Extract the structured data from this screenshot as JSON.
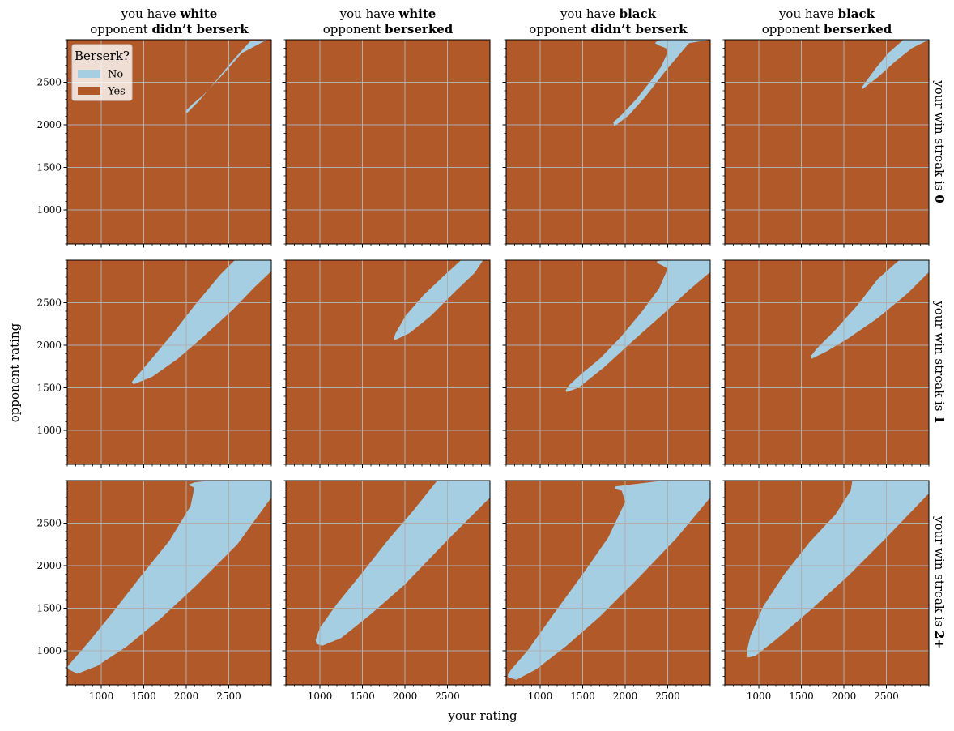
{
  "figure": {
    "x_label": "your rating",
    "y_label": "opponent rating"
  },
  "chart_data": {
    "type": "heatmap",
    "xlim": [
      600,
      3000
    ],
    "ylim": [
      600,
      3000
    ],
    "x_ticks": [
      1000,
      1500,
      2000,
      2500
    ],
    "y_ticks": [
      1000,
      1500,
      2000,
      2500
    ],
    "minor_tick_step": 100,
    "grid": true,
    "colors": {
      "no": "#a6cee3",
      "yes": "#b15928",
      "grid": "#b0b0b0"
    },
    "legend": {
      "title": "Berserk?",
      "entries": [
        {
          "label": "No",
          "color": "#a6cee3"
        },
        {
          "label": "Yes",
          "color": "#b15928"
        }
      ],
      "location": "upper-left of first panel"
    },
    "columns": [
      {
        "prefix": "you have ",
        "color": "white",
        "line2_prefix": "opponent ",
        "opponent": "didn’t berserk"
      },
      {
        "prefix": "you have ",
        "color": "white",
        "line2_prefix": "opponent ",
        "opponent": "berserked"
      },
      {
        "prefix": "you have ",
        "color": "black",
        "line2_prefix": "opponent ",
        "opponent": "didn’t berserk"
      },
      {
        "prefix": "you have ",
        "color": "black",
        "line2_prefix": "opponent ",
        "opponent": "berserked"
      }
    ],
    "rows": [
      {
        "prefix": "your win streak is ",
        "value": "0"
      },
      {
        "prefix": "your win streak is ",
        "value": "1"
      },
      {
        "prefix": "your win streak is ",
        "value": "2+"
      }
    ],
    "regions": [
      [
        [
          [
            2000,
            2130
          ],
          [
            2150,
            2280
          ],
          [
            2350,
            2520
          ],
          [
            2550,
            2760
          ],
          [
            2750,
            2980
          ],
          [
            3000,
            3000
          ],
          [
            2950,
            3000
          ],
          [
            2650,
            2840
          ],
          [
            2420,
            2580
          ],
          [
            2200,
            2350
          ],
          [
            2060,
            2230
          ],
          [
            1990,
            2160
          ]
        ],
        [],
        [
          [
            1870,
            1980
          ],
          [
            2040,
            2110
          ],
          [
            2230,
            2320
          ],
          [
            2480,
            2640
          ],
          [
            2750,
            2960
          ],
          [
            3000,
            3000
          ],
          [
            2500,
            3000
          ],
          [
            2380,
            2990
          ],
          [
            2350,
            2960
          ],
          [
            2400,
            2930
          ],
          [
            2480,
            2900
          ],
          [
            2500,
            2850
          ],
          [
            2420,
            2680
          ],
          [
            2280,
            2490
          ],
          [
            2130,
            2300
          ],
          [
            1960,
            2120
          ],
          [
            1860,
            2030
          ]
        ],
        [
          [
            2220,
            2420
          ],
          [
            2400,
            2560
          ],
          [
            2600,
            2740
          ],
          [
            2800,
            2900
          ],
          [
            3000,
            3000
          ],
          [
            2700,
            3000
          ],
          [
            2520,
            2840
          ],
          [
            2380,
            2670
          ],
          [
            2260,
            2510
          ],
          [
            2210,
            2440
          ]
        ]
      ],
      [
        [
          [
            1380,
            1540
          ],
          [
            1600,
            1630
          ],
          [
            1900,
            1840
          ],
          [
            2200,
            2100
          ],
          [
            2550,
            2420
          ],
          [
            2800,
            2680
          ],
          [
            3000,
            2870
          ],
          [
            3000,
            3000
          ],
          [
            2570,
            3000
          ],
          [
            2400,
            2830
          ],
          [
            2100,
            2470
          ],
          [
            1850,
            2150
          ],
          [
            1600,
            1850
          ],
          [
            1430,
            1650
          ],
          [
            1360,
            1570
          ]
        ],
        [
          [
            1880,
            2060
          ],
          [
            2050,
            2140
          ],
          [
            2300,
            2340
          ],
          [
            2600,
            2640
          ],
          [
            2820,
            2850
          ],
          [
            2920,
            3000
          ],
          [
            2660,
            3000
          ],
          [
            2450,
            2810
          ],
          [
            2220,
            2590
          ],
          [
            2010,
            2350
          ],
          [
            1890,
            2140
          ],
          [
            1870,
            2080
          ]
        ],
        [
          [
            1310,
            1450
          ],
          [
            1450,
            1500
          ],
          [
            1750,
            1740
          ],
          [
            2100,
            2060
          ],
          [
            2450,
            2370
          ],
          [
            2750,
            2650
          ],
          [
            3000,
            2860
          ],
          [
            3000,
            3000
          ],
          [
            2500,
            3000
          ],
          [
            2380,
            2990
          ],
          [
            2370,
            2970
          ],
          [
            2450,
            2930
          ],
          [
            2500,
            2900
          ],
          [
            2400,
            2670
          ],
          [
            2200,
            2400
          ],
          [
            1950,
            2100
          ],
          [
            1700,
            1840
          ],
          [
            1480,
            1660
          ],
          [
            1340,
            1530
          ],
          [
            1300,
            1470
          ]
        ],
        [
          [
            1620,
            1840
          ],
          [
            1800,
            1930
          ],
          [
            2050,
            2080
          ],
          [
            2400,
            2320
          ],
          [
            2750,
            2610
          ],
          [
            3000,
            2860
          ],
          [
            3000,
            3000
          ],
          [
            2650,
            3000
          ],
          [
            2400,
            2780
          ],
          [
            2150,
            2460
          ],
          [
            1900,
            2180
          ],
          [
            1680,
            1960
          ],
          [
            1610,
            1870
          ]
        ]
      ],
      [
        [
          [
            620,
            780
          ],
          [
            720,
            730
          ],
          [
            950,
            820
          ],
          [
            1300,
            1050
          ],
          [
            1700,
            1380
          ],
          [
            2100,
            1750
          ],
          [
            2600,
            2250
          ],
          [
            3000,
            2800
          ],
          [
            3000,
            3000
          ],
          [
            2300,
            3000
          ],
          [
            2100,
            2980
          ],
          [
            2020,
            2950
          ],
          [
            2090,
            2920
          ],
          [
            2080,
            2840
          ],
          [
            2050,
            2700
          ],
          [
            1800,
            2290
          ],
          [
            1500,
            1920
          ],
          [
            1150,
            1470
          ],
          [
            850,
            1100
          ],
          [
            650,
            870
          ],
          [
            600,
            810
          ]
        ],
        [
          [
            960,
            1080
          ],
          [
            1030,
            1060
          ],
          [
            1250,
            1150
          ],
          [
            1600,
            1430
          ],
          [
            2000,
            1780
          ],
          [
            2500,
            2300
          ],
          [
            3000,
            2800
          ],
          [
            3000,
            3000
          ],
          [
            2380,
            3000
          ],
          [
            2100,
            2650
          ],
          [
            1800,
            2300
          ],
          [
            1500,
            1920
          ],
          [
            1200,
            1550
          ],
          [
            1000,
            1270
          ],
          [
            950,
            1130
          ]
        ],
        [
          [
            620,
            690
          ],
          [
            720,
            660
          ],
          [
            950,
            780
          ],
          [
            1300,
            1050
          ],
          [
            1700,
            1400
          ],
          [
            2150,
            1850
          ],
          [
            2600,
            2320
          ],
          [
            3000,
            2800
          ],
          [
            3000,
            3000
          ],
          [
            2450,
            3000
          ],
          [
            1960,
            2940
          ],
          [
            1880,
            2930
          ],
          [
            1880,
            2900
          ],
          [
            1960,
            2880
          ],
          [
            2000,
            2750
          ],
          [
            1800,
            2330
          ],
          [
            1500,
            1900
          ],
          [
            1150,
            1420
          ],
          [
            850,
            1000
          ],
          [
            660,
            780
          ],
          [
            620,
            720
          ]
        ],
        [
          [
            870,
            920
          ],
          [
            960,
            940
          ],
          [
            1200,
            1130
          ],
          [
            1600,
            1470
          ],
          [
            2050,
            1880
          ],
          [
            2500,
            2330
          ],
          [
            3000,
            2850
          ],
          [
            3000,
            3000
          ],
          [
            2100,
            3000
          ],
          [
            2080,
            2880
          ],
          [
            1900,
            2600
          ],
          [
            1600,
            2280
          ],
          [
            1300,
            1900
          ],
          [
            1050,
            1520
          ],
          [
            900,
            1170
          ],
          [
            860,
            1000
          ]
        ]
      ]
    ]
  }
}
